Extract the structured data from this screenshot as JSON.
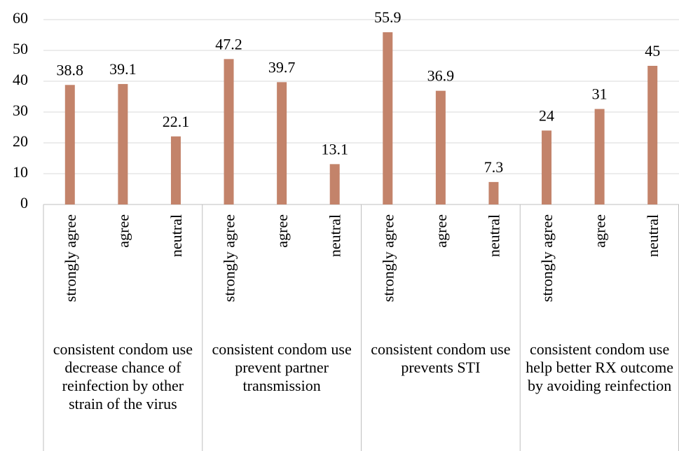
{
  "chart_data": {
    "type": "bar",
    "color": "#c3836a",
    "ylim": [
      0,
      60
    ],
    "yticks": [
      0,
      10,
      20,
      30,
      40,
      50,
      60
    ],
    "grid": true,
    "groups": [
      {
        "name": "consistent condom use decrease chance of reinfection by other strain of the virus",
        "categories": [
          "strongly agree",
          "agree",
          "neutral"
        ],
        "values": [
          38.8,
          39.1,
          22.1
        ]
      },
      {
        "name": "consistent condom use prevent partner transmission",
        "categories": [
          "strongly agree",
          "agree",
          "neutral"
        ],
        "values": [
          47.2,
          39.7,
          13.1
        ]
      },
      {
        "name": "consistent condom use prevents STI",
        "categories": [
          "strongly agree",
          "agree",
          "neutral"
        ],
        "values": [
          55.9,
          36.9,
          7.3
        ]
      },
      {
        "name": "consistent condom use help better RX outcome by avoiding reinfection",
        "categories": [
          "strongly agree",
          "agree",
          "neutral"
        ],
        "values": [
          24,
          31,
          45
        ]
      }
    ]
  }
}
